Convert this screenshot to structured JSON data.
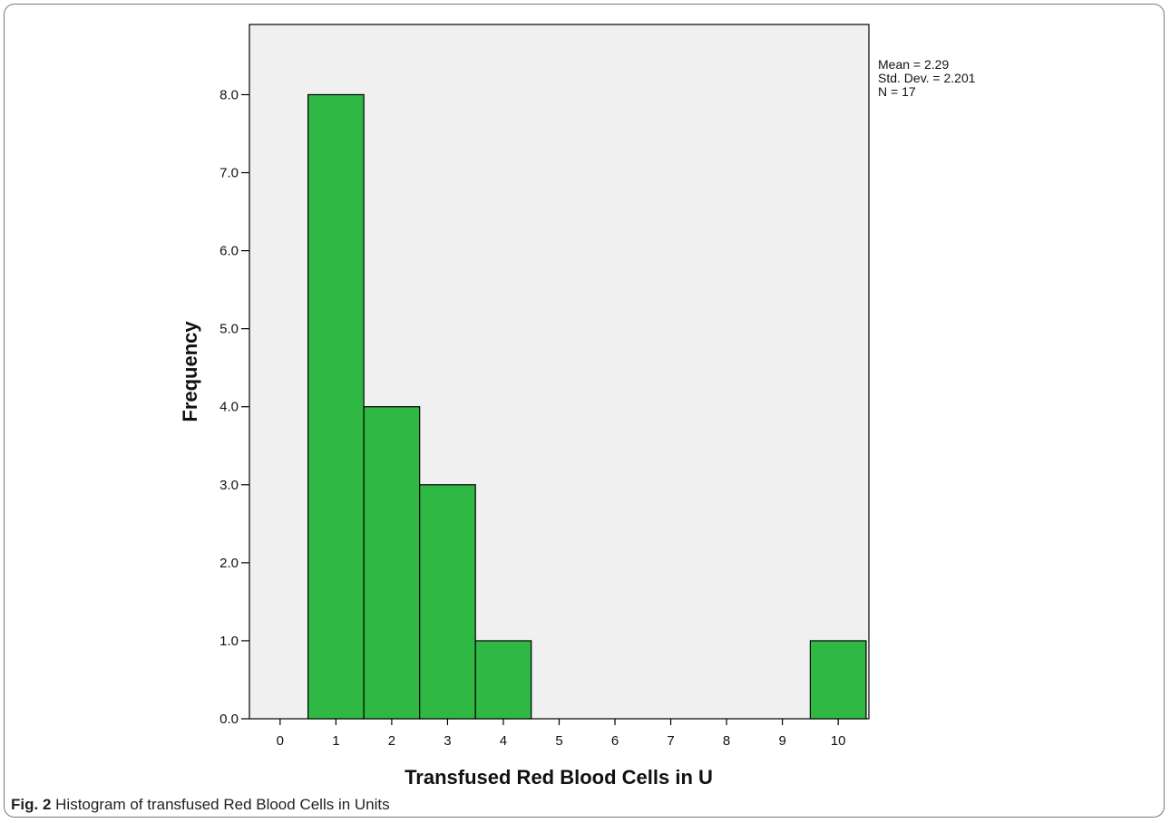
{
  "chart_data": {
    "type": "bar",
    "xlabel": "Transfused Red Blood Cells in U",
    "ylabel": "Frequency",
    "x_ticks": [
      "0",
      "1",
      "2",
      "3",
      "4",
      "5",
      "6",
      "7",
      "8",
      "9",
      "10"
    ],
    "y_ticks": [
      "0.0",
      "1.0",
      "2.0",
      "3.0",
      "4.0",
      "5.0",
      "6.0",
      "7.0",
      "8.0"
    ],
    "ylim": [
      0,
      8.9
    ],
    "xlim": [
      -0.55,
      10.55
    ],
    "bin_width": 1,
    "categories": [
      1,
      2,
      3,
      4,
      10
    ],
    "values": [
      8,
      4,
      3,
      1,
      1
    ],
    "bar_color": "#2fb844",
    "plot_background": "#f0f0f0",
    "grid": false,
    "legend": "none"
  },
  "stats": {
    "mean": "Mean = 2.29",
    "std": "Std. Dev. = 2.201",
    "n": "N = 17"
  },
  "caption": {
    "label": "Fig. 2",
    "text": "Histogram of transfused Red Blood Cells in Units"
  }
}
